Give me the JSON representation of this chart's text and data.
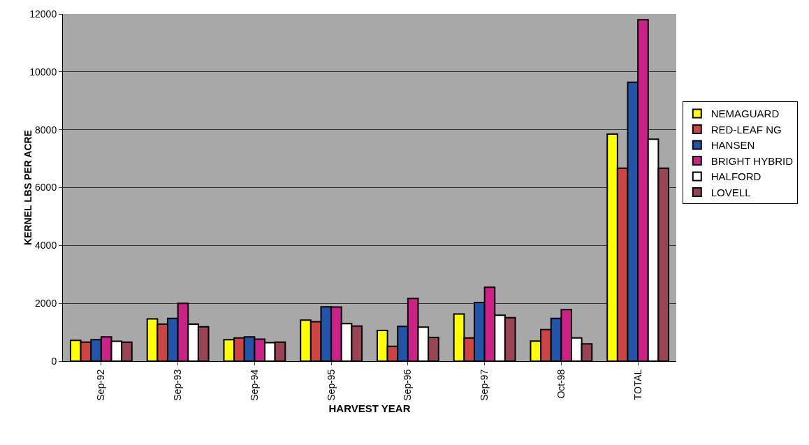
{
  "chart_data": {
    "type": "bar",
    "xlabel": "HARVEST YEAR",
    "ylabel": "KERNEL LBS PER ACRE",
    "categories": [
      "Sep-92",
      "Sep-93",
      "Sep-94",
      "Sep-95",
      "Sep-96",
      "Sep-97",
      "Oct-98",
      "TOTAL"
    ],
    "series": [
      {
        "name": "NEMAGUARD",
        "color": "#ffff00",
        "values": [
          720,
          1460,
          745,
          1420,
          1065,
          1630,
          695,
          7850
        ]
      },
      {
        "name": "RED-LEAF NG",
        "color": "#cc4444",
        "values": [
          660,
          1280,
          800,
          1365,
          515,
          800,
          1090,
          6670
        ]
      },
      {
        "name": "HANSEN",
        "color": "#2255aa",
        "values": [
          745,
          1480,
          840,
          1880,
          1200,
          2030,
          1480,
          9640
        ]
      },
      {
        "name": "BRIGHT HYBRID",
        "color": "#cc2288",
        "values": [
          840,
          2000,
          760,
          1870,
          2170,
          2555,
          1780,
          11800
        ]
      },
      {
        "name": "HALFORD",
        "color": "#ffffff",
        "values": [
          690,
          1280,
          640,
          1300,
          1175,
          1590,
          800,
          7670
        ]
      },
      {
        "name": "LOVELL",
        "color": "#994455",
        "values": [
          660,
          1190,
          660,
          1215,
          820,
          1505,
          595,
          6670
        ]
      }
    ],
    "ylim": [
      0,
      12000
    ],
    "yticks": [
      0,
      2000,
      4000,
      6000,
      8000,
      10000,
      12000
    ],
    "grid": "y",
    "legend": "right"
  }
}
